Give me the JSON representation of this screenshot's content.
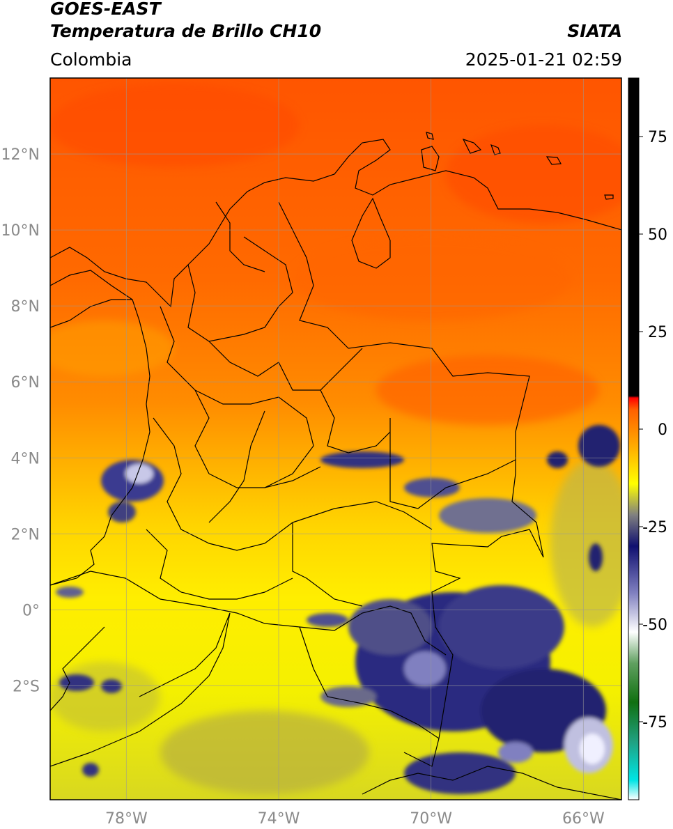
{
  "header": {
    "satellite": "GOES-EAST",
    "product": "Temperatura de Brillo CH10",
    "region": "Colombia",
    "brand": "SIATA",
    "datetime": "2025-01-21 02:59"
  },
  "map": {
    "lon_range": [
      -80,
      -65
    ],
    "lat_range": [
      -5,
      14
    ],
    "lat_ticks": [
      {
        "value": 12,
        "label": "12°N"
      },
      {
        "value": 10,
        "label": "10°N"
      },
      {
        "value": 8,
        "label": "8°N"
      },
      {
        "value": 6,
        "label": "6°N"
      },
      {
        "value": 4,
        "label": "4°N"
      },
      {
        "value": 2,
        "label": "2°N"
      },
      {
        "value": 0,
        "label": "0°"
      },
      {
        "value": -2,
        "label": "2°S"
      }
    ],
    "lon_ticks": [
      {
        "value": -78,
        "label": "78°W"
      },
      {
        "value": -74,
        "label": "74°W"
      },
      {
        "value": -70,
        "label": "70°W"
      },
      {
        "value": -66,
        "label": "66°W"
      }
    ],
    "grid": true
  },
  "colorbar": {
    "range": [
      -95,
      90
    ],
    "ticks": [
      {
        "value": 75,
        "label": "75"
      },
      {
        "value": 50,
        "label": "50"
      },
      {
        "value": 25,
        "label": "25"
      },
      {
        "value": 0,
        "label": "0"
      },
      {
        "value": -25,
        "label": "-25"
      },
      {
        "value": -50,
        "label": "-50"
      },
      {
        "value": -75,
        "label": "-75"
      }
    ],
    "stops": [
      {
        "value": -95,
        "color": "#ffffff"
      },
      {
        "value": -90,
        "color": "#00e5e5"
      },
      {
        "value": -80,
        "color": "#20a080"
      },
      {
        "value": -70,
        "color": "#107010"
      },
      {
        "value": -60,
        "color": "#60a060"
      },
      {
        "value": -52,
        "color": "#ffffff"
      },
      {
        "value": -42,
        "color": "#8080c0"
      },
      {
        "value": -30,
        "color": "#101070"
      },
      {
        "value": -22,
        "color": "#808080"
      },
      {
        "value": -14,
        "color": "#ffff00"
      },
      {
        "value": -5,
        "color": "#ffb000"
      },
      {
        "value": 5,
        "color": "#ff6000"
      },
      {
        "value": 8,
        "color": "#ff0000"
      },
      {
        "value": 8.5,
        "color": "#000000"
      },
      {
        "value": 90,
        "color": "#000000"
      }
    ]
  }
}
